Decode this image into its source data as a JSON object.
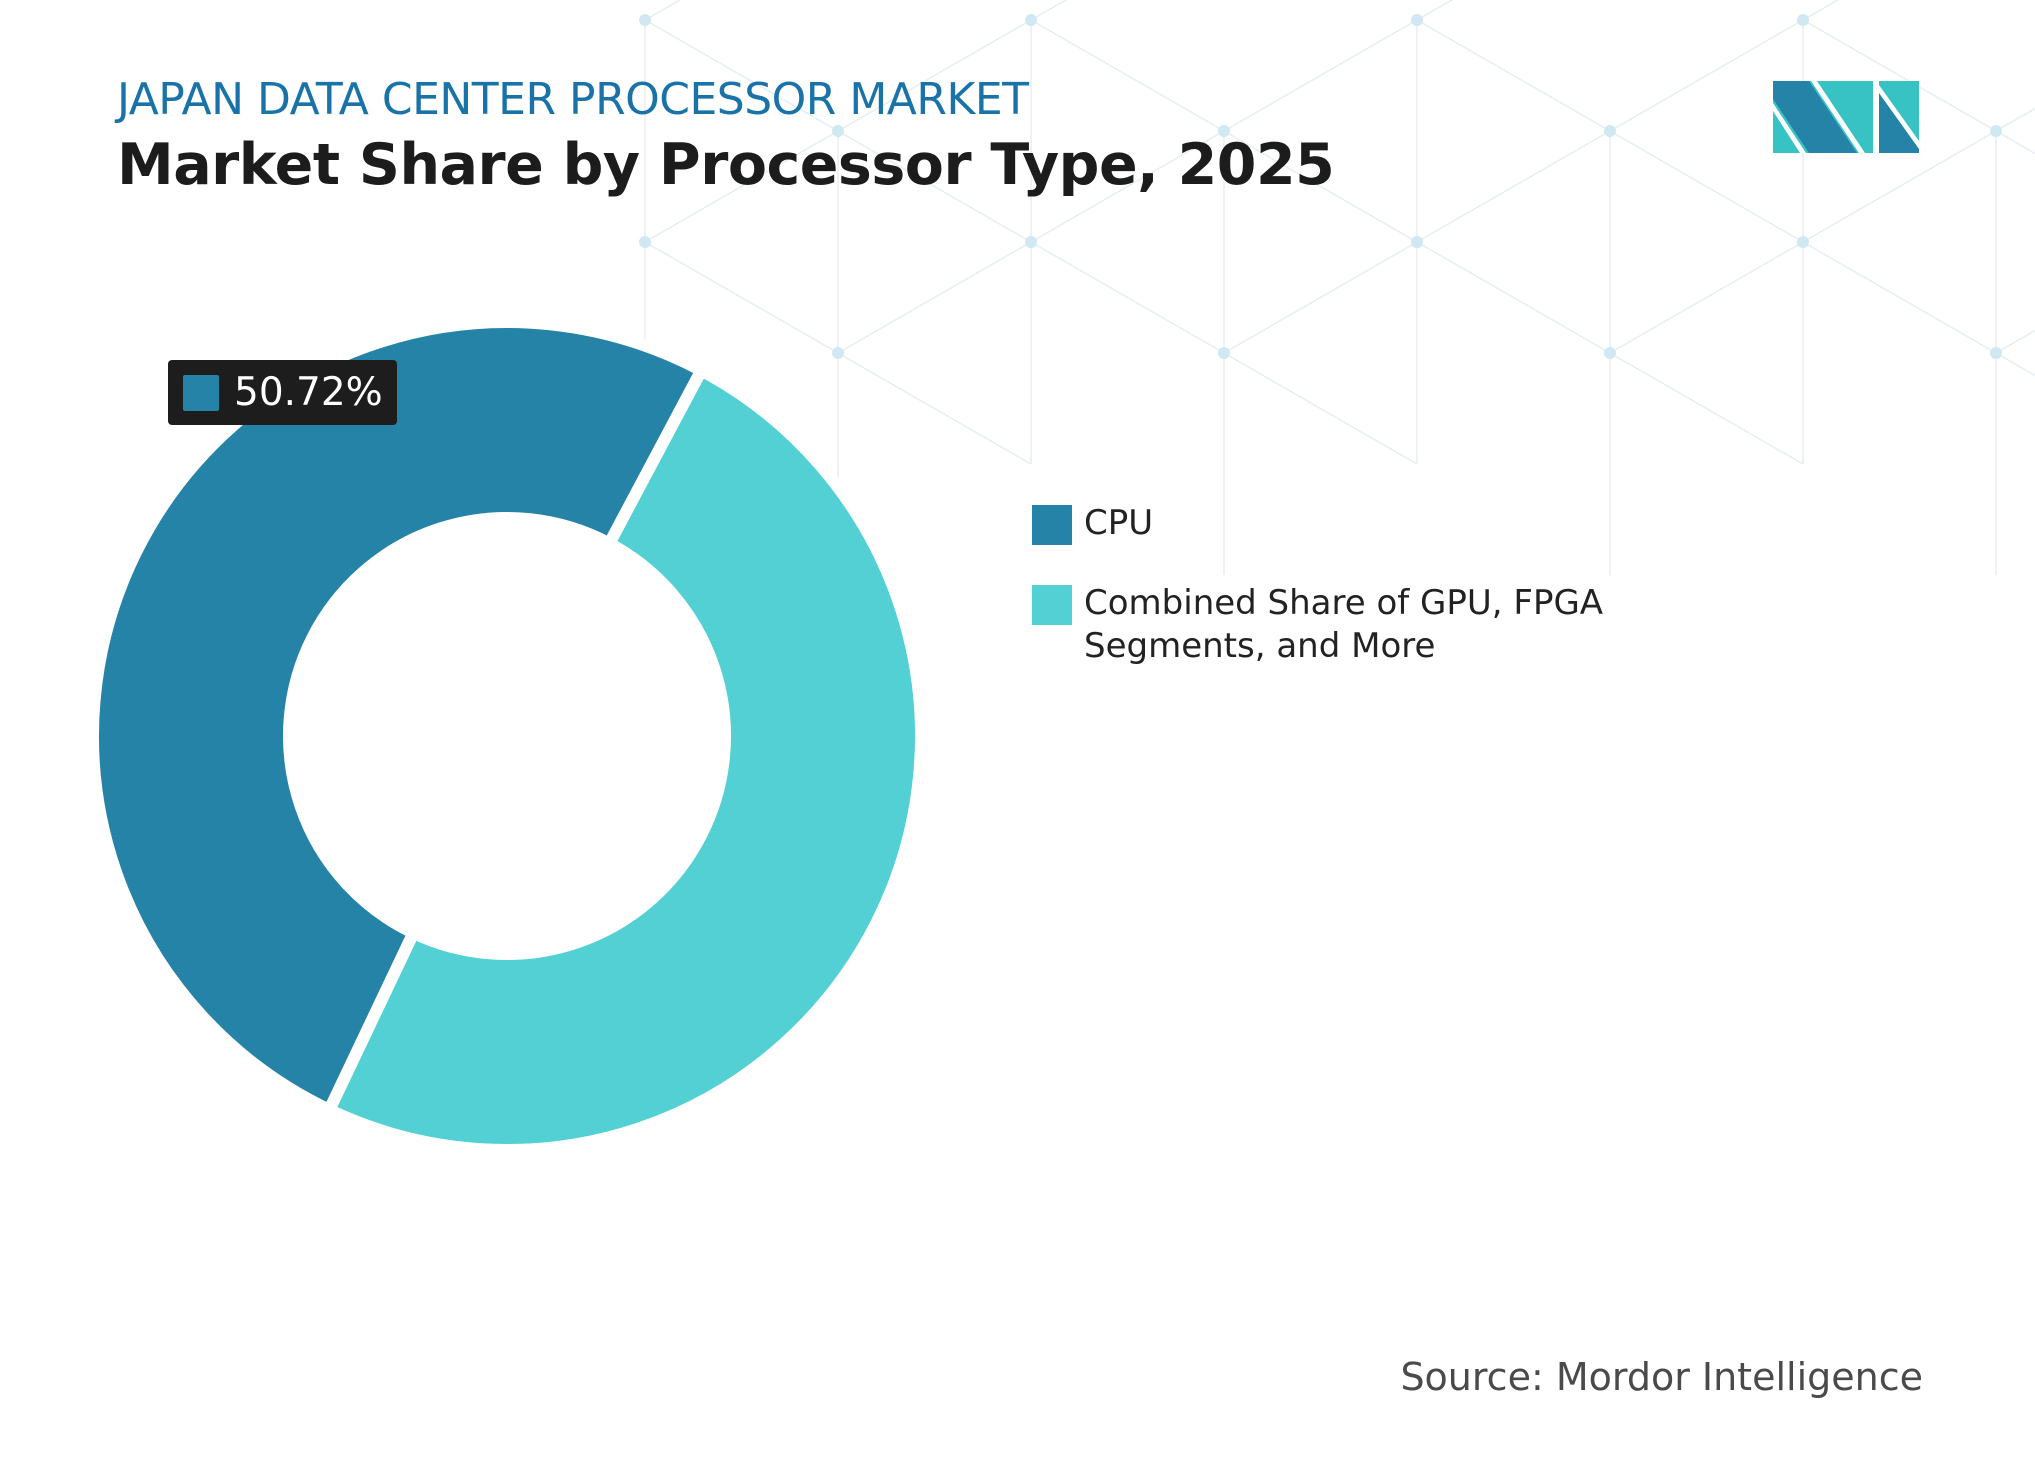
{
  "header": {
    "kicker": "JAPAN DATA CENTER PROCESSOR MARKET",
    "title": "Market Share by Processor Type, 2025"
  },
  "logo": {
    "text": "MI",
    "colors": [
      "#2683a8",
      "#37c2c4"
    ]
  },
  "source": "Source: Mordor Intelligence",
  "chart_data": {
    "type": "pie",
    "variant": "donut",
    "title": "Market Share by Processor Type, 2025",
    "categories": [
      "CPU",
      "Combined Share of GPU, FPGA Segments, and More"
    ],
    "values": [
      50.72,
      49.28
    ],
    "unit": "%",
    "colors": [
      "#2683a8",
      "#52d0d3"
    ],
    "data_labels": [
      {
        "category": "CPU",
        "text": "50.72%"
      }
    ],
    "legend": {
      "placement": "right",
      "entries": [
        "CPU",
        "Combined Share of GPU, FPGA Segments, and More"
      ]
    }
  }
}
